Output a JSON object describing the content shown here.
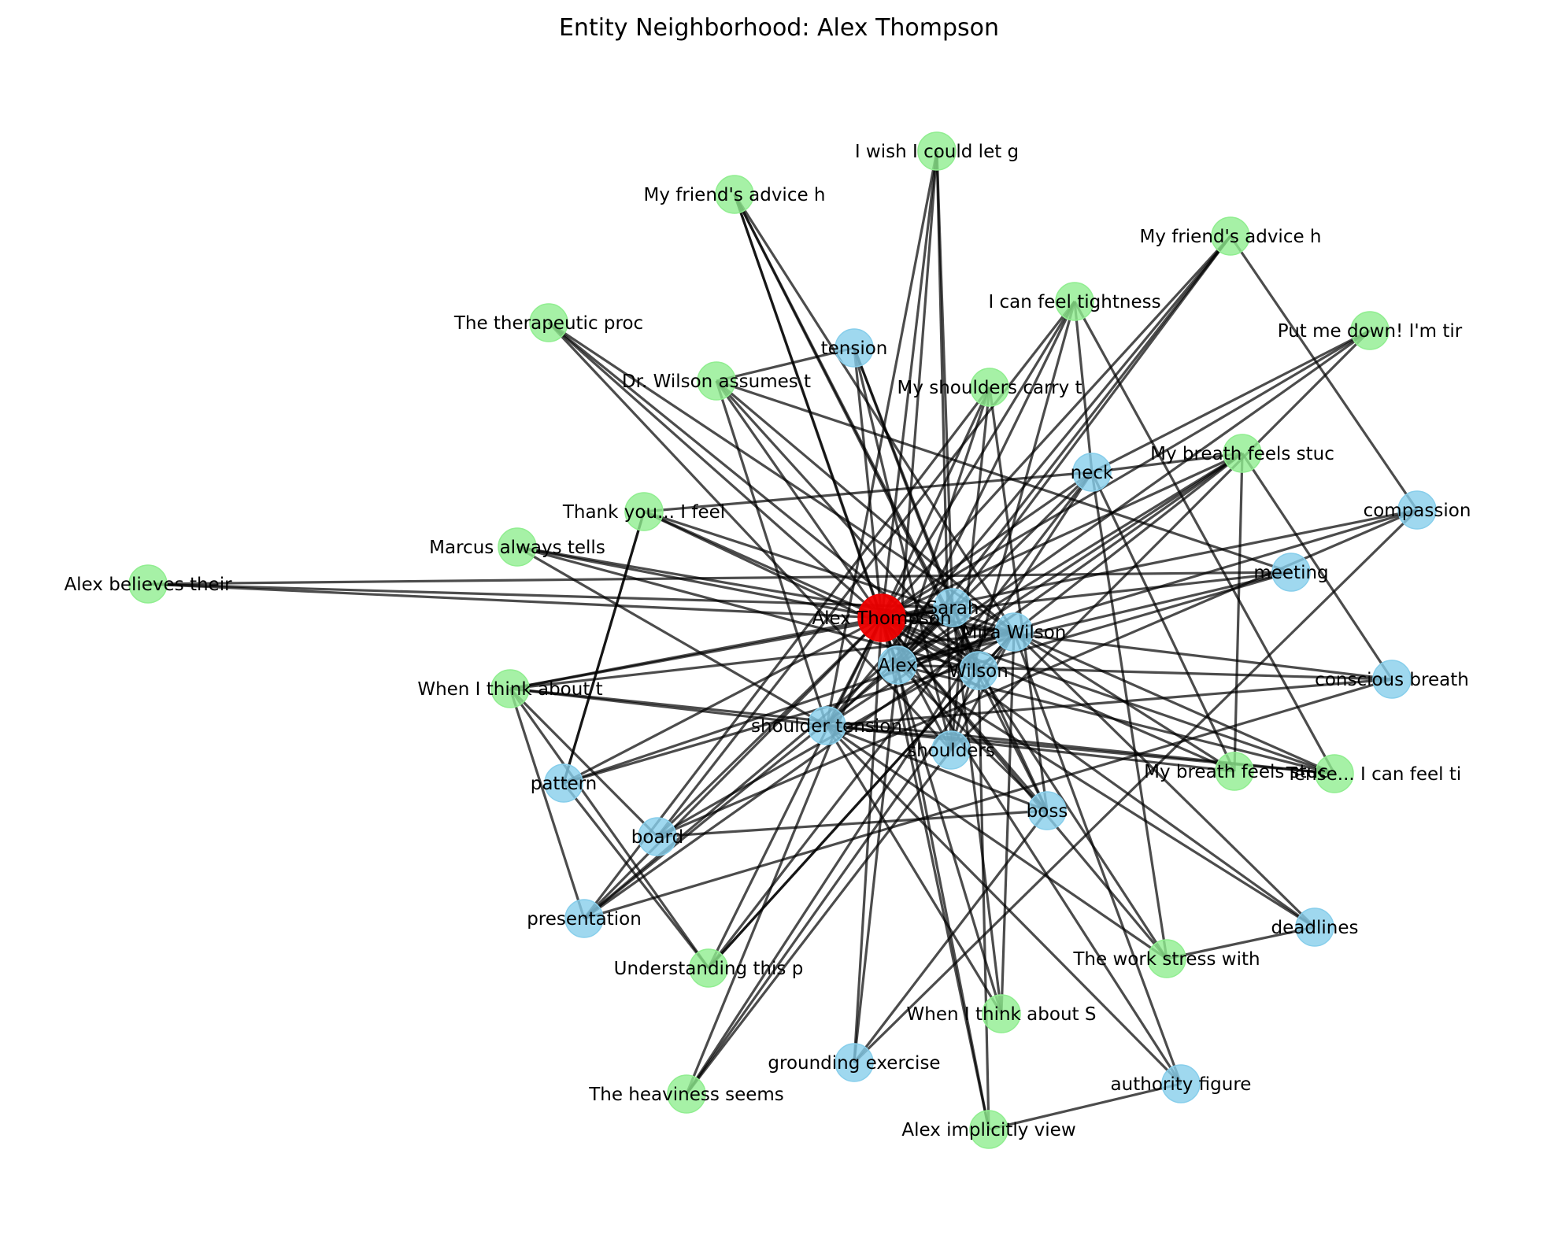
{
  "title": "Entity Neighborhood: Alex Thompson",
  "colors": {
    "focus": "#ee0000",
    "entity": "#87ceeb",
    "statement": "#90ee90",
    "edge": "#000000"
  },
  "nodes": [
    {
      "id": "center",
      "label": "Alex Thompson",
      "kind": "focus"
    },
    {
      "id": "sarah",
      "label": "Sarah",
      "kind": "entity"
    },
    {
      "id": "mira",
      "label": "Mira Wilson",
      "kind": "entity"
    },
    {
      "id": "alex",
      "label": "Alex",
      "kind": "entity"
    },
    {
      "id": "wilson",
      "label": "Wilson",
      "kind": "entity"
    },
    {
      "id": "shoulder_tension",
      "label": "shoulder tension",
      "kind": "entity"
    },
    {
      "id": "shoulders",
      "label": "shoulders",
      "kind": "entity"
    },
    {
      "id": "tension",
      "label": "tension",
      "kind": "entity"
    },
    {
      "id": "neck",
      "label": "neck",
      "kind": "entity"
    },
    {
      "id": "compassion",
      "label": "compassion",
      "kind": "entity"
    },
    {
      "id": "meeting",
      "label": "meeting",
      "kind": "entity"
    },
    {
      "id": "conscious_breath",
      "label": "conscious breath",
      "kind": "entity"
    },
    {
      "id": "boss",
      "label": "boss",
      "kind": "entity"
    },
    {
      "id": "deadlines",
      "label": "deadlines",
      "kind": "entity"
    },
    {
      "id": "authority",
      "label": "authority figure",
      "kind": "entity"
    },
    {
      "id": "grounding",
      "label": "grounding exercise",
      "kind": "entity"
    },
    {
      "id": "presentation",
      "label": "presentation",
      "kind": "entity"
    },
    {
      "id": "board",
      "label": "board",
      "kind": "entity"
    },
    {
      "id": "pattern",
      "label": "pattern",
      "kind": "entity"
    },
    {
      "id": "s_wish",
      "label": "I wish I could let g",
      "kind": "statement"
    },
    {
      "id": "s_friend1",
      "label": "My friend's advice h",
      "kind": "statement"
    },
    {
      "id": "s_friend2",
      "label": "My friend's advice h",
      "kind": "statement"
    },
    {
      "id": "s_tight1",
      "label": "I can feel tightness",
      "kind": "statement"
    },
    {
      "id": "s_putme",
      "label": "Put me down! I'm tir",
      "kind": "statement"
    },
    {
      "id": "s_therap",
      "label": "The therapeutic proc",
      "kind": "statement"
    },
    {
      "id": "s_drwilson",
      "label": "Dr. Wilson assumes t",
      "kind": "statement"
    },
    {
      "id": "s_shoulders",
      "label": "My shoulders carry t",
      "kind": "statement"
    },
    {
      "id": "s_breath1",
      "label": "My breath feels stuc",
      "kind": "statement"
    },
    {
      "id": "s_thank",
      "label": "Thank you... I feel",
      "kind": "statement"
    },
    {
      "id": "s_marcus",
      "label": "Marcus always tells",
      "kind": "statement"
    },
    {
      "id": "s_believes",
      "label": "Alex believes their",
      "kind": "statement"
    },
    {
      "id": "s_think1",
      "label": "When I think about t",
      "kind": "statement"
    },
    {
      "id": "s_breath2",
      "label": "My breath feels stuc",
      "kind": "statement"
    },
    {
      "id": "s_tense",
      "label": "Tense... I can feel ti",
      "kind": "statement"
    },
    {
      "id": "s_understand",
      "label": "Understanding this p",
      "kind": "statement"
    },
    {
      "id": "s_workstress",
      "label": "The work stress with",
      "kind": "statement"
    },
    {
      "id": "s_think2",
      "label": "When I think about S",
      "kind": "statement"
    },
    {
      "id": "s_heavy",
      "label": "The heaviness seems",
      "kind": "statement"
    },
    {
      "id": "s_implicit",
      "label": "Alex implicitly view",
      "kind": "statement"
    }
  ],
  "edges": [
    [
      "s_believes",
      "center"
    ],
    [
      "s_believes",
      "sarah"
    ],
    [
      "s_marcus",
      "center"
    ],
    [
      "s_marcus",
      "mira"
    ],
    [
      "s_marcus",
      "wilson"
    ],
    [
      "s_marcus",
      "shoulder_tension"
    ],
    [
      "s_thank",
      "center"
    ],
    [
      "s_thank",
      "mira"
    ],
    [
      "s_thank",
      "neck"
    ],
    [
      "s_thank",
      "wilson"
    ],
    [
      "s_thank",
      "pattern"
    ],
    [
      "s_therap",
      "center"
    ],
    [
      "s_therap",
      "mira"
    ],
    [
      "s_therap",
      "wilson"
    ],
    [
      "s_therap",
      "shoulders"
    ],
    [
      "s_drwilson",
      "center"
    ],
    [
      "s_drwilson",
      "tension"
    ],
    [
      "s_drwilson",
      "wilson"
    ],
    [
      "s_drwilson",
      "mira"
    ],
    [
      "s_drwilson",
      "meeting"
    ],
    [
      "s_drwilson",
      "shoulder_tension"
    ],
    [
      "s_friend1",
      "center"
    ],
    [
      "s_friend1",
      "alex"
    ],
    [
      "s_friend1",
      "wilson"
    ],
    [
      "s_friend1",
      "mira"
    ],
    [
      "s_friend1",
      "boss"
    ],
    [
      "s_wish",
      "center"
    ],
    [
      "s_wish",
      "sarah"
    ],
    [
      "s_wish",
      "alex"
    ],
    [
      "s_wish",
      "shoulder_tension"
    ],
    [
      "s_wish",
      "shoulders"
    ],
    [
      "s_tight1",
      "center"
    ],
    [
      "s_tight1",
      "alex"
    ],
    [
      "s_tight1",
      "shoulders"
    ],
    [
      "s_tight1",
      "board"
    ],
    [
      "s_tight1",
      "neck"
    ],
    [
      "s_tight1",
      "s_tense"
    ],
    [
      "s_friend2",
      "center"
    ],
    [
      "s_friend2",
      "sarah"
    ],
    [
      "s_friend2",
      "alex"
    ],
    [
      "s_friend2",
      "compassion"
    ],
    [
      "s_friend2",
      "shoulder_tension"
    ],
    [
      "s_putme",
      "center"
    ],
    [
      "s_putme",
      "alex"
    ],
    [
      "s_putme",
      "shoulders"
    ],
    [
      "s_putme",
      "neck"
    ],
    [
      "s_shoulders",
      "center"
    ],
    [
      "s_shoulders",
      "alex"
    ],
    [
      "s_shoulders",
      "shoulders"
    ],
    [
      "s_shoulders",
      "presentation"
    ],
    [
      "s_shoulders",
      "boss"
    ],
    [
      "s_breath1",
      "center"
    ],
    [
      "s_breath1",
      "alex"
    ],
    [
      "s_breath1",
      "mira"
    ],
    [
      "s_breath1",
      "shoulder_tension"
    ],
    [
      "s_breath1",
      "presentation"
    ],
    [
      "s_breath1",
      "neck"
    ],
    [
      "s_breath1",
      "conscious_breath"
    ],
    [
      "tension",
      "center"
    ],
    [
      "tension",
      "wilson"
    ],
    [
      "tension",
      "shoulders"
    ],
    [
      "tension",
      "sarah"
    ],
    [
      "neck",
      "center"
    ],
    [
      "neck",
      "alex"
    ],
    [
      "neck",
      "s_breath2"
    ],
    [
      "neck",
      "s_workstress"
    ],
    [
      "neck",
      "s_heavy"
    ],
    [
      "compassion",
      "center"
    ],
    [
      "compassion",
      "alex"
    ],
    [
      "compassion",
      "grounding"
    ],
    [
      "compassion",
      "board"
    ],
    [
      "meeting",
      "center"
    ],
    [
      "meeting",
      "alex"
    ],
    [
      "meeting",
      "pattern"
    ],
    [
      "conscious_breath",
      "center"
    ],
    [
      "conscious_breath",
      "alex"
    ],
    [
      "conscious_breath",
      "shoulder_tension"
    ],
    [
      "conscious_breath",
      "presentation"
    ],
    [
      "s_think1",
      "center"
    ],
    [
      "s_think1",
      "mira"
    ],
    [
      "s_think1",
      "shoulder_tension"
    ],
    [
      "s_think1",
      "s_understand"
    ],
    [
      "s_think1",
      "board"
    ],
    [
      "s_think1",
      "s_tense"
    ],
    [
      "s_think1",
      "sarah"
    ],
    [
      "pattern",
      "center"
    ],
    [
      "pattern",
      "mira"
    ],
    [
      "pattern",
      "s_thank"
    ],
    [
      "pattern",
      "s_understand"
    ],
    [
      "board",
      "center"
    ],
    [
      "board",
      "mira"
    ],
    [
      "board",
      "boss"
    ],
    [
      "presentation",
      "center"
    ],
    [
      "presentation",
      "sarah"
    ],
    [
      "presentation",
      "s_think1"
    ],
    [
      "presentation",
      "alex"
    ],
    [
      "s_understand",
      "center"
    ],
    [
      "s_understand",
      "mira"
    ],
    [
      "s_understand",
      "wilson"
    ],
    [
      "s_understand",
      "neck"
    ],
    [
      "s_heavy",
      "center"
    ],
    [
      "s_heavy",
      "mira"
    ],
    [
      "s_heavy",
      "shoulders"
    ],
    [
      "grounding",
      "center"
    ],
    [
      "grounding",
      "alex"
    ],
    [
      "grounding",
      "boss"
    ],
    [
      "s_think2",
      "center"
    ],
    [
      "s_think2",
      "sarah"
    ],
    [
      "s_think2",
      "shoulder_tension"
    ],
    [
      "s_think2",
      "mira"
    ],
    [
      "s_implicit",
      "center"
    ],
    [
      "s_implicit",
      "alex"
    ],
    [
      "s_implicit",
      "authority"
    ],
    [
      "s_implicit",
      "wilson"
    ],
    [
      "authority",
      "center"
    ],
    [
      "authority",
      "mira"
    ],
    [
      "authority",
      "shoulder_tension"
    ],
    [
      "s_workstress",
      "center"
    ],
    [
      "s_workstress",
      "wilson"
    ],
    [
      "s_workstress",
      "deadlines"
    ],
    [
      "s_workstress",
      "shoulder_tension"
    ],
    [
      "deadlines",
      "center"
    ],
    [
      "deadlines",
      "mira"
    ],
    [
      "deadlines",
      "alex"
    ],
    [
      "boss",
      "center"
    ],
    [
      "boss",
      "alex"
    ],
    [
      "boss",
      "shoulder_tension"
    ],
    [
      "boss",
      "sarah"
    ],
    [
      "s_breath2",
      "center"
    ],
    [
      "s_breath2",
      "mira"
    ],
    [
      "s_breath2",
      "shoulder_tension"
    ],
    [
      "s_breath2",
      "s_breath1"
    ],
    [
      "s_tense",
      "center"
    ],
    [
      "s_tense",
      "mira"
    ],
    [
      "s_tense",
      "alex"
    ],
    [
      "s_tense",
      "shoulder_tension"
    ],
    [
      "shoulders",
      "center"
    ],
    [
      "shoulders",
      "mira"
    ],
    [
      "shoulder_tension",
      "center"
    ],
    [
      "shoulder_tension",
      "sarah"
    ],
    [
      "alex",
      "center"
    ],
    [
      "alex",
      "sarah"
    ],
    [
      "alex",
      "mira"
    ],
    [
      "wilson",
      "center"
    ],
    [
      "wilson",
      "sarah"
    ],
    [
      "wilson",
      "mira"
    ],
    [
      "mira",
      "center"
    ],
    [
      "sarah",
      "center"
    ],
    [
      "meeting",
      "s_believes"
    ]
  ]
}
